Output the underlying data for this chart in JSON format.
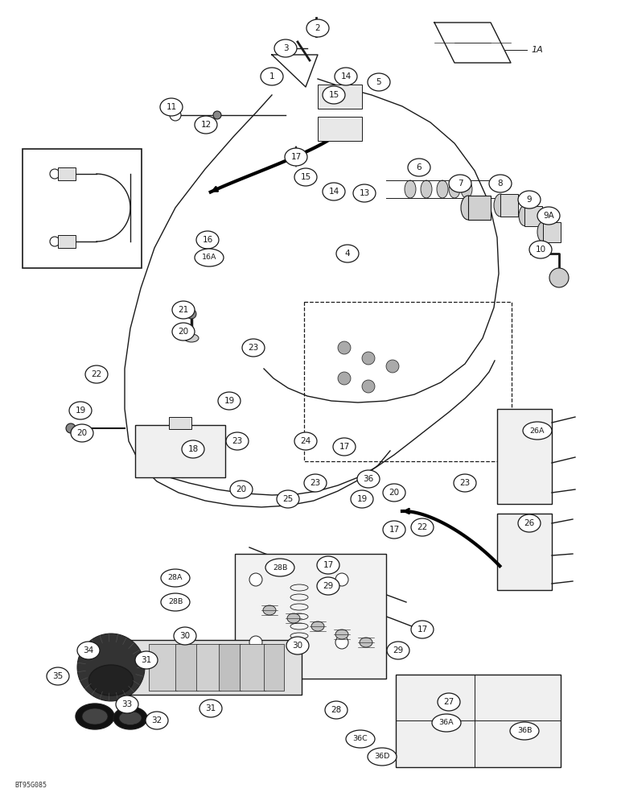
{
  "bg": "#ffffff",
  "lc": "#1a1a1a",
  "dpi": 100,
  "fw": 7.72,
  "fh": 10.0,
  "watermark": "BT95G085",
  "labels": [
    [
      "2",
      395,
      35
    ],
    [
      "3",
      355,
      60
    ],
    [
      "1",
      338,
      95
    ],
    [
      "11",
      213,
      133
    ],
    [
      "12",
      256,
      155
    ],
    [
      "14",
      430,
      95
    ],
    [
      "15",
      415,
      118
    ],
    [
      "5",
      471,
      102
    ],
    [
      "17",
      368,
      195
    ],
    [
      "15",
      380,
      220
    ],
    [
      "14",
      415,
      238
    ],
    [
      "13",
      453,
      240
    ],
    [
      "6",
      521,
      208
    ],
    [
      "7",
      572,
      228
    ],
    [
      "8",
      622,
      228
    ],
    [
      "9",
      658,
      248
    ],
    [
      "9A",
      682,
      268
    ],
    [
      "10",
      672,
      310
    ],
    [
      "16",
      258,
      298
    ],
    [
      "16A",
      260,
      320
    ],
    [
      "4",
      432,
      315
    ],
    [
      "21",
      228,
      385
    ],
    [
      "20",
      228,
      412
    ],
    [
      "23",
      315,
      432
    ],
    [
      "22",
      120,
      465
    ],
    [
      "19",
      100,
      510
    ],
    [
      "20",
      102,
      538
    ],
    [
      "18",
      240,
      558
    ],
    [
      "19",
      285,
      498
    ],
    [
      "23",
      295,
      548
    ],
    [
      "24",
      380,
      548
    ],
    [
      "23",
      392,
      600
    ],
    [
      "20",
      300,
      608
    ],
    [
      "25",
      358,
      620
    ],
    [
      "36",
      458,
      595
    ],
    [
      "17",
      428,
      555
    ],
    [
      "17",
      490,
      658
    ],
    [
      "19",
      450,
      620
    ],
    [
      "20",
      490,
      612
    ],
    [
      "23",
      578,
      600
    ],
    [
      "22",
      525,
      655
    ],
    [
      "26A",
      668,
      535
    ],
    [
      "26",
      658,
      650
    ],
    [
      "28B",
      348,
      705
    ],
    [
      "28A",
      218,
      718
    ],
    [
      "28B",
      218,
      748
    ],
    [
      "29",
      408,
      728
    ],
    [
      "17",
      408,
      702
    ],
    [
      "30",
      230,
      790
    ],
    [
      "31",
      182,
      820
    ],
    [
      "34",
      110,
      808
    ],
    [
      "35",
      72,
      840
    ],
    [
      "33",
      158,
      875
    ],
    [
      "32",
      195,
      895
    ],
    [
      "31",
      262,
      880
    ],
    [
      "30",
      370,
      802
    ],
    [
      "28",
      418,
      882
    ],
    [
      "36C",
      448,
      918
    ],
    [
      "36D",
      475,
      940
    ],
    [
      "36A",
      555,
      898
    ],
    [
      "36B",
      652,
      908
    ],
    [
      "27",
      558,
      872
    ],
    [
      "29",
      495,
      808
    ],
    [
      "17",
      525,
      782
    ]
  ]
}
